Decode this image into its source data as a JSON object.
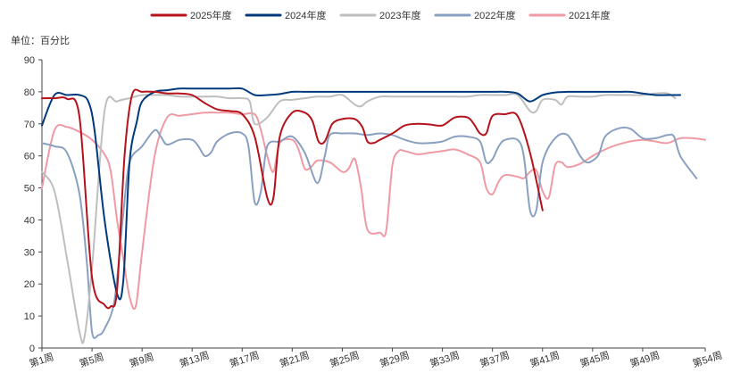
{
  "chart_data": {
    "type": "line",
    "unit_label": "单位：百分比",
    "ylim": [
      0,
      90
    ],
    "yticks": [
      0,
      10,
      20,
      30,
      40,
      50,
      60,
      70,
      80,
      90
    ],
    "xlim": [
      1,
      54
    ],
    "xticks": [
      1,
      5,
      9,
      13,
      17,
      21,
      25,
      29,
      33,
      37,
      41,
      45,
      49,
      54
    ],
    "xtick_labels": [
      "第1周",
      "第5周",
      "第9周",
      "第13周",
      "第17周",
      "第21周",
      "第25周",
      "第29周",
      "第33周",
      "第37周",
      "第41周",
      "第45周",
      "第49周",
      "第54周"
    ],
    "grid": false,
    "legend_position": "top-center",
    "series": [
      {
        "name": "2025年度",
        "color": "#b5121b",
        "points": [
          [
            1,
            78
          ],
          [
            2,
            78
          ],
          [
            3,
            77.8
          ],
          [
            4,
            72
          ],
          [
            5,
            22
          ],
          [
            6,
            13.5
          ],
          [
            6.5,
            13
          ],
          [
            7,
            18
          ],
          [
            7.6,
            60
          ],
          [
            8.2,
            79
          ],
          [
            9,
            80
          ],
          [
            10,
            80
          ],
          [
            11,
            79.5
          ],
          [
            12,
            79.5
          ],
          [
            13,
            79
          ],
          [
            14,
            76.5
          ],
          [
            15,
            74.5
          ],
          [
            16,
            74
          ],
          [
            17,
            73
          ],
          [
            18,
            66
          ],
          [
            19,
            47
          ],
          [
            19.5,
            47
          ],
          [
            20,
            66
          ],
          [
            21,
            73.5
          ],
          [
            22,
            73.5
          ],
          [
            22.6,
            71
          ],
          [
            23.1,
            64.5
          ],
          [
            23.6,
            64.5
          ],
          [
            24.2,
            70
          ],
          [
            25,
            71.5
          ],
          [
            26,
            71.5
          ],
          [
            26.6,
            69
          ],
          [
            27,
            64.5
          ],
          [
            27.5,
            64
          ],
          [
            28,
            65
          ],
          [
            29,
            67
          ],
          [
            30,
            69.5
          ],
          [
            31,
            70
          ],
          [
            32,
            69.8
          ],
          [
            33,
            69.5
          ],
          [
            34,
            72
          ],
          [
            35,
            72
          ],
          [
            35.5,
            70
          ],
          [
            36,
            67
          ],
          [
            36.5,
            67
          ],
          [
            37,
            72.5
          ],
          [
            38,
            73
          ],
          [
            39,
            72.5
          ],
          [
            40,
            61
          ],
          [
            41,
            43
          ]
        ]
      },
      {
        "name": "2024年度",
        "color": "#003a7d",
        "points": [
          [
            1,
            69.5
          ],
          [
            2,
            79
          ],
          [
            3,
            79
          ],
          [
            4,
            79
          ],
          [
            4.7,
            77
          ],
          [
            5.2,
            68
          ],
          [
            6,
            40
          ],
          [
            7,
            17
          ],
          [
            7.5,
            21
          ],
          [
            8,
            58
          ],
          [
            8.6,
            71
          ],
          [
            9,
            77
          ],
          [
            10,
            80
          ],
          [
            11,
            80.5
          ],
          [
            12,
            81
          ],
          [
            13,
            81
          ],
          [
            14,
            81
          ],
          [
            15,
            81
          ],
          [
            16,
            81
          ],
          [
            17,
            81
          ],
          [
            18,
            79
          ],
          [
            19,
            79
          ],
          [
            20,
            79.3
          ],
          [
            21,
            80
          ],
          [
            22,
            80
          ],
          [
            23,
            80
          ],
          [
            24,
            80
          ],
          [
            25,
            80
          ],
          [
            26,
            80
          ],
          [
            27,
            80
          ],
          [
            28,
            80
          ],
          [
            29,
            80
          ],
          [
            30,
            80
          ],
          [
            31,
            80
          ],
          [
            32,
            80
          ],
          [
            33,
            80
          ],
          [
            34,
            80
          ],
          [
            35,
            80
          ],
          [
            36,
            80
          ],
          [
            37,
            80
          ],
          [
            38,
            80
          ],
          [
            39,
            79.5
          ],
          [
            40,
            77
          ],
          [
            41,
            79
          ],
          [
            42,
            79.8
          ],
          [
            43,
            80
          ],
          [
            44,
            80
          ],
          [
            45,
            80
          ],
          [
            46,
            80
          ],
          [
            47,
            80
          ],
          [
            48,
            80
          ],
          [
            49,
            79.5
          ],
          [
            50,
            79
          ],
          [
            51,
            79
          ],
          [
            52,
            79
          ]
        ]
      },
      {
        "name": "2023年度",
        "color": "#bebebe",
        "points": [
          [
            1,
            55
          ],
          [
            2,
            49
          ],
          [
            3,
            28
          ],
          [
            4,
            5
          ],
          [
            4.4,
            3.5
          ],
          [
            5,
            25
          ],
          [
            6,
            74
          ],
          [
            7,
            77
          ],
          [
            8,
            78
          ],
          [
            9,
            79
          ],
          [
            10,
            79
          ],
          [
            11,
            79
          ],
          [
            12,
            78.5
          ],
          [
            13,
            78.5
          ],
          [
            14,
            78.5
          ],
          [
            15,
            78.5
          ],
          [
            16,
            78
          ],
          [
            17,
            78
          ],
          [
            17.6,
            77
          ],
          [
            18,
            70
          ],
          [
            19,
            72
          ],
          [
            20,
            77
          ],
          [
            21,
            77.5
          ],
          [
            22,
            78
          ],
          [
            23,
            78.5
          ],
          [
            24,
            78.5
          ],
          [
            25,
            79
          ],
          [
            26,
            76
          ],
          [
            26.5,
            75.5
          ],
          [
            27,
            77
          ],
          [
            28,
            78.5
          ],
          [
            29,
            78.5
          ],
          [
            30,
            78.5
          ],
          [
            31,
            78.5
          ],
          [
            32,
            78.5
          ],
          [
            33,
            78.5
          ],
          [
            34,
            78.5
          ],
          [
            35,
            78.5
          ],
          [
            36,
            79
          ],
          [
            37,
            79
          ],
          [
            38,
            79
          ],
          [
            39,
            79
          ],
          [
            40,
            74
          ],
          [
            40.5,
            74
          ],
          [
            41,
            77.5
          ],
          [
            42,
            77.5
          ],
          [
            42.5,
            76
          ],
          [
            43,
            78.5
          ],
          [
            44,
            78.5
          ],
          [
            45,
            78.5
          ],
          [
            46,
            79
          ],
          [
            47,
            79
          ],
          [
            48,
            79
          ],
          [
            49,
            79
          ],
          [
            50,
            79.5
          ],
          [
            51,
            79.5
          ],
          [
            51.6,
            78
          ]
        ]
      },
      {
        "name": "2022年度",
        "color": "#8aa0c0",
        "points": [
          [
            1,
            64
          ],
          [
            2,
            63
          ],
          [
            3,
            61
          ],
          [
            4,
            48
          ],
          [
            4.6,
            26
          ],
          [
            5,
            5
          ],
          [
            5.5,
            4
          ],
          [
            6,
            6
          ],
          [
            6.8,
            15
          ],
          [
            7.5,
            42
          ],
          [
            8,
            58
          ],
          [
            9,
            63
          ],
          [
            10,
            68
          ],
          [
            10.5,
            66
          ],
          [
            11,
            63.5
          ],
          [
            12,
            65
          ],
          [
            13,
            65
          ],
          [
            13.5,
            63
          ],
          [
            14,
            60
          ],
          [
            14.5,
            61
          ],
          [
            15,
            64.5
          ],
          [
            16,
            67
          ],
          [
            17,
            67
          ],
          [
            17.5,
            63
          ],
          [
            18,
            45.5
          ],
          [
            18.5,
            49
          ],
          [
            19,
            63
          ],
          [
            20,
            64.5
          ],
          [
            21,
            66
          ],
          [
            22,
            61
          ],
          [
            23,
            51.5
          ],
          [
            23.6,
            60
          ],
          [
            24,
            66.5
          ],
          [
            25,
            67
          ],
          [
            26,
            67
          ],
          [
            27,
            66.5
          ],
          [
            28,
            67
          ],
          [
            29,
            66.5
          ],
          [
            30,
            65
          ],
          [
            31,
            64
          ],
          [
            32,
            64
          ],
          [
            33,
            64.5
          ],
          [
            34,
            66
          ],
          [
            35,
            66
          ],
          [
            36,
            64.5
          ],
          [
            36.5,
            58
          ],
          [
            37,
            59
          ],
          [
            37.5,
            63
          ],
          [
            38,
            65
          ],
          [
            39,
            65
          ],
          [
            39.5,
            60
          ],
          [
            40,
            43
          ],
          [
            40.5,
            43
          ],
          [
            41,
            58
          ],
          [
            42,
            65.5
          ],
          [
            43,
            66.5
          ],
          [
            44,
            60
          ],
          [
            44.5,
            58
          ],
          [
            45,
            58.5
          ],
          [
            45.5,
            60.5
          ],
          [
            46,
            66
          ],
          [
            47,
            68.5
          ],
          [
            48,
            68.5
          ],
          [
            49,
            65.5
          ],
          [
            50,
            65.5
          ],
          [
            51,
            66.5
          ],
          [
            51.5,
            66
          ],
          [
            52,
            60
          ],
          [
            53,
            54.5
          ],
          [
            53.3,
            53
          ]
        ]
      },
      {
        "name": "2021年度",
        "color": "#ef9aa5",
        "points": [
          [
            1,
            50
          ],
          [
            2,
            68
          ],
          [
            3,
            69
          ],
          [
            4,
            67.5
          ],
          [
            5,
            65
          ],
          [
            6,
            60.5
          ],
          [
            6.5,
            55
          ],
          [
            7,
            40
          ],
          [
            7.5,
            28
          ],
          [
            8,
            16
          ],
          [
            8.5,
            13
          ],
          [
            9,
            30
          ],
          [
            10,
            60
          ],
          [
            11,
            72
          ],
          [
            12,
            72.5
          ],
          [
            13,
            73
          ],
          [
            14,
            73.5
          ],
          [
            15,
            73.5
          ],
          [
            16,
            73.5
          ],
          [
            17,
            73
          ],
          [
            18,
            73
          ],
          [
            18.5,
            68
          ],
          [
            19,
            60
          ],
          [
            19.5,
            55
          ],
          [
            20,
            64
          ],
          [
            21,
            65
          ],
          [
            21.5,
            62
          ],
          [
            22,
            56
          ],
          [
            22.5,
            56.5
          ],
          [
            23,
            58.5
          ],
          [
            24,
            58
          ],
          [
            25,
            55
          ],
          [
            25.5,
            56
          ],
          [
            26,
            59
          ],
          [
            26.5,
            50
          ],
          [
            27,
            37
          ],
          [
            28,
            36
          ],
          [
            28.5,
            36.5
          ],
          [
            29,
            57
          ],
          [
            29.5,
            61.5
          ],
          [
            30,
            61.5
          ],
          [
            31,
            60.5
          ],
          [
            32,
            61
          ],
          [
            33,
            61.5
          ],
          [
            34,
            62
          ],
          [
            35,
            60.5
          ],
          [
            36,
            58
          ],
          [
            36.5,
            50
          ],
          [
            37,
            48
          ],
          [
            37.5,
            52
          ],
          [
            38,
            54
          ],
          [
            39,
            53.5
          ],
          [
            39.5,
            53
          ],
          [
            40,
            55
          ],
          [
            40.5,
            55.5
          ],
          [
            41,
            49
          ],
          [
            41.5,
            47
          ],
          [
            42,
            57
          ],
          [
            42.5,
            58
          ],
          [
            43,
            56.5
          ],
          [
            44,
            57.5
          ],
          [
            45,
            60
          ],
          [
            46,
            62
          ],
          [
            47,
            63.5
          ],
          [
            48,
            64.5
          ],
          [
            49,
            65
          ],
          [
            50,
            64.5
          ],
          [
            51,
            64
          ],
          [
            52,
            65.5
          ],
          [
            53,
            65.5
          ],
          [
            54,
            65
          ]
        ]
      }
    ]
  }
}
